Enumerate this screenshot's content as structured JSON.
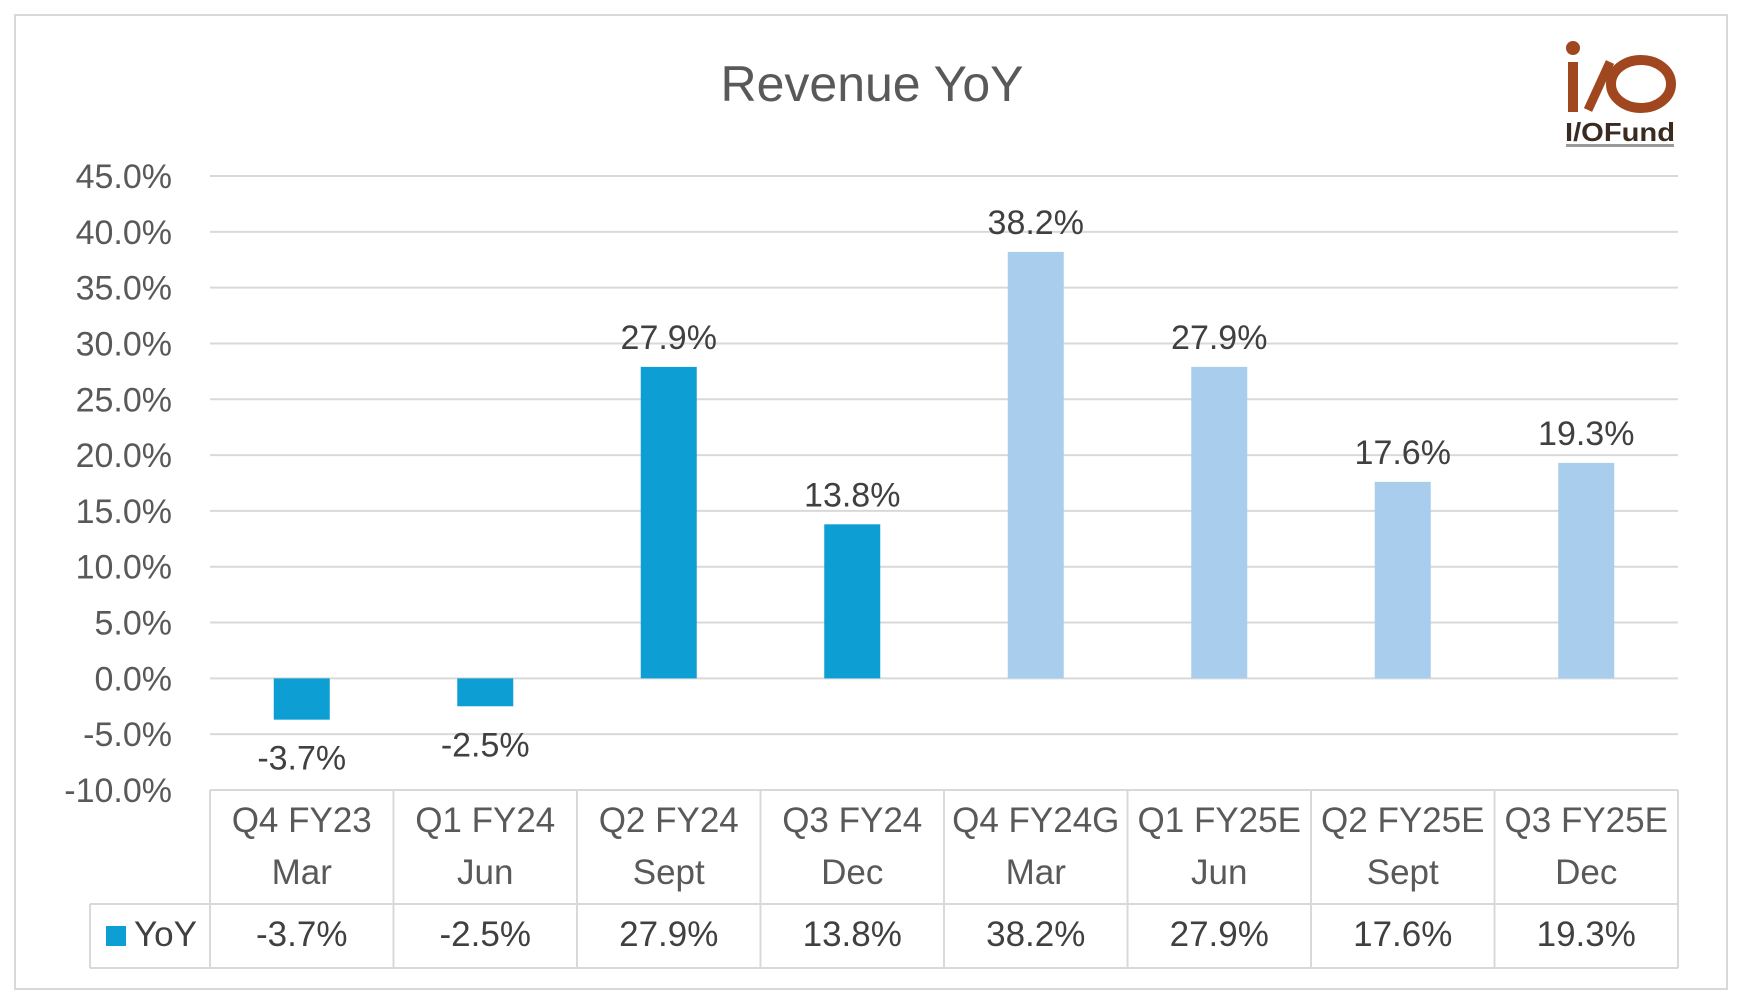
{
  "chart_data": {
    "type": "bar",
    "title": "Revenue YoY",
    "categories": [
      [
        "Q4 FY23",
        "Mar"
      ],
      [
        "Q1 FY24",
        "Jun"
      ],
      [
        "Q2 FY24",
        "Sept"
      ],
      [
        "Q3 FY24",
        "Dec"
      ],
      [
        "Q4 FY24G",
        "Mar"
      ],
      [
        "Q1 FY25E",
        "Jun"
      ],
      [
        "Q2 FY25E",
        "Sept"
      ],
      [
        "Q3 FY25E",
        "Dec"
      ]
    ],
    "series": [
      {
        "name": "YoY",
        "values": [
          -3.7,
          -2.5,
          27.9,
          13.8,
          38.2,
          27.9,
          17.6,
          19.3
        ],
        "labels": [
          "-3.7%",
          "-2.5%",
          "27.9%",
          "13.8%",
          "38.2%",
          "27.9%",
          "17.6%",
          "19.3%"
        ]
      }
    ],
    "bar_colors": [
      "#0d9ed4",
      "#0d9ed4",
      "#0d9ed4",
      "#0d9ed4",
      "#a9cdec",
      "#a9cdec",
      "#a9cdec",
      "#a9cdec"
    ],
    "ylim": [
      -10,
      45
    ],
    "yticks": [
      "45.0%",
      "40.0%",
      "35.0%",
      "30.0%",
      "25.0%",
      "20.0%",
      "15.0%",
      "10.0%",
      "5.0%",
      "0.0%",
      "-5.0%",
      "-10.0%"
    ],
    "ytick_values": [
      45,
      40,
      35,
      30,
      25,
      20,
      15,
      10,
      5,
      0,
      -5,
      -10
    ],
    "grid": true,
    "legend": "data-table",
    "xlabel": "",
    "ylabel": ""
  },
  "logo": {
    "text": "I/OFund",
    "color": "#a0471f"
  }
}
